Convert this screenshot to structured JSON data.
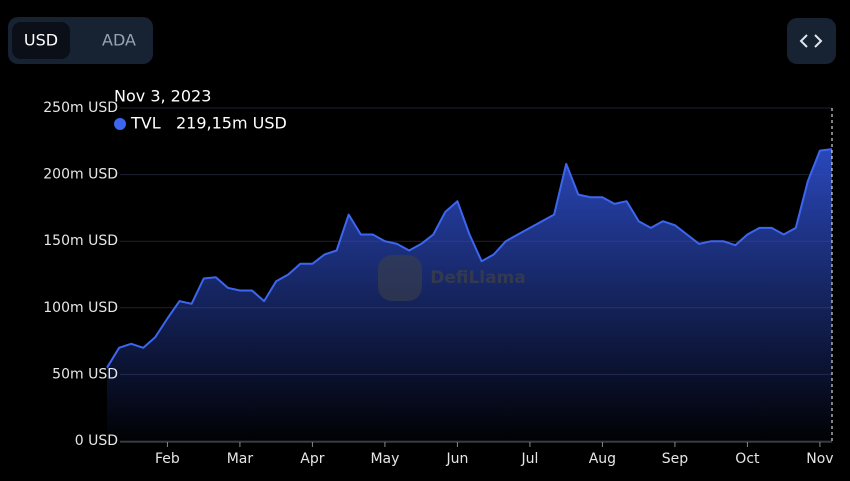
{
  "toggle": {
    "options": [
      "USD",
      "ADA"
    ],
    "selected": "USD"
  },
  "watermark": "DefiLlama",
  "chart_data": {
    "type": "area",
    "tooltip": {
      "title": "Nov 3, 2023",
      "value": 219.15,
      "value_label": "219,15m USD"
    },
    "categories": [
      null,
      null,
      null,
      null,
      null,
      "Feb",
      null,
      null,
      null,
      null,
      null,
      "Mar",
      null,
      null,
      null,
      null,
      null,
      "Apr",
      null,
      null,
      null,
      null,
      null,
      "May",
      null,
      null,
      null,
      null,
      null,
      "Jun",
      null,
      null,
      null,
      null,
      null,
      "Jul",
      null,
      null,
      null,
      null,
      null,
      "Aug",
      null,
      null,
      null,
      null,
      null,
      "Sep",
      null,
      null,
      null,
      null,
      null,
      "Oct",
      null,
      null,
      null,
      null,
      null,
      "Nov",
      null
    ],
    "series": [
      {
        "name": "TVL",
        "color": "#3d66f0",
        "values": [
          55,
          70,
          73,
          70,
          78,
          92,
          105,
          103,
          122,
          123,
          115,
          113,
          113,
          105,
          120,
          125,
          133,
          133,
          140,
          143,
          170,
          155,
          155,
          150,
          148,
          143,
          148,
          155,
          172,
          180,
          155,
          135,
          140,
          150,
          155,
          160,
          165,
          170,
          208,
          185,
          183,
          183,
          178,
          180,
          165,
          160,
          165,
          162,
          155,
          148,
          150,
          150,
          147,
          155,
          160,
          160,
          155,
          160,
          195,
          218,
          219.15
        ]
      }
    ],
    "ylim": [
      0,
      250
    ],
    "yticks": [
      {
        "value": 0,
        "label": "0 USD"
      },
      {
        "value": 50,
        "label": "50m USD"
      },
      {
        "value": 100,
        "label": "100m USD"
      },
      {
        "value": 150,
        "label": "150m USD"
      },
      {
        "value": 200,
        "label": "200m USD"
      },
      {
        "value": 250,
        "label": "250m USD"
      }
    ],
    "grid": true
  }
}
